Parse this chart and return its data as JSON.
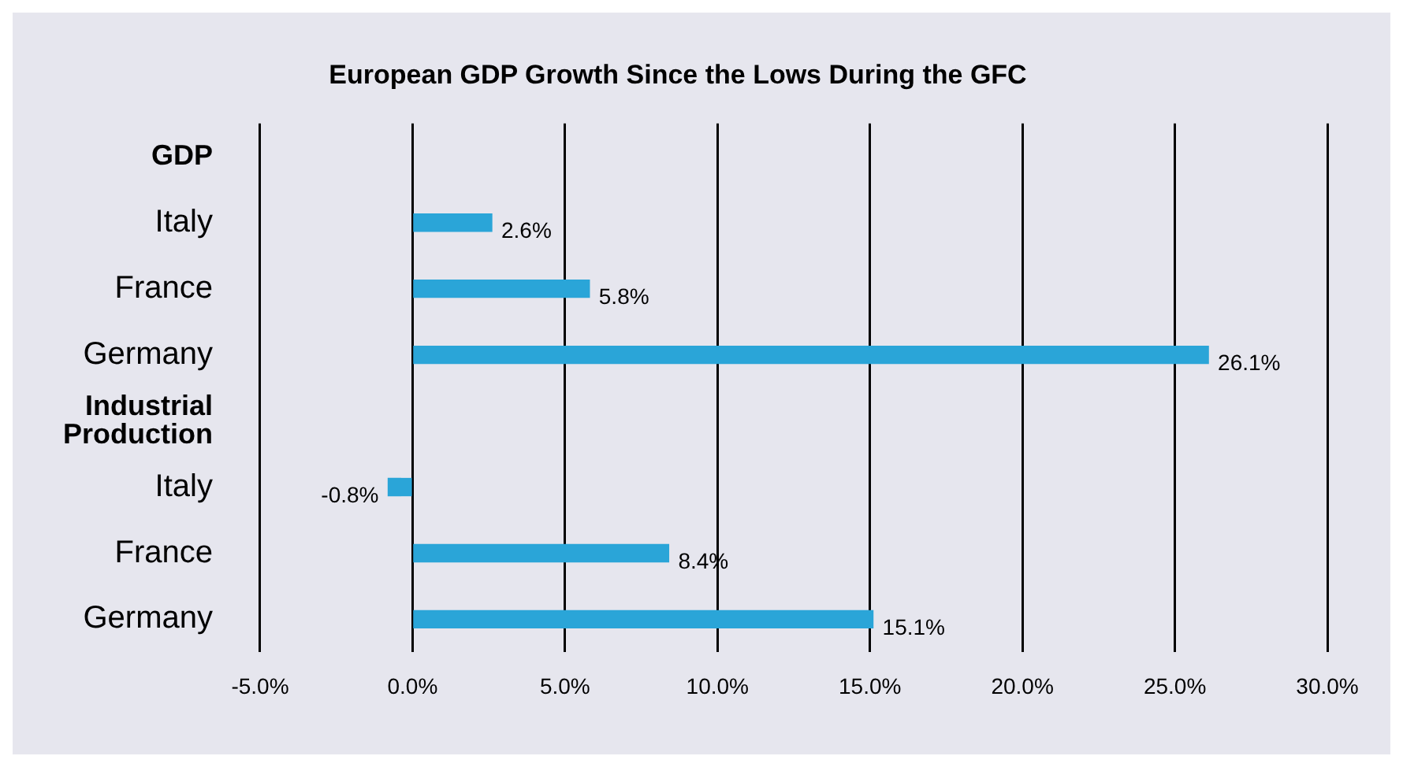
{
  "chart_data": {
    "type": "bar",
    "orientation": "horizontal",
    "title": "European GDP Growth Since the Lows During the GFC",
    "categories": [
      "GDP",
      "Italy",
      "France",
      "Germany",
      "Industrial Production",
      "Italy",
      "France",
      "Germany"
    ],
    "values": [
      null,
      2.6,
      5.8,
      26.1,
      null,
      -0.8,
      8.4,
      15.1
    ],
    "value_labels": [
      null,
      "2.6%",
      "5.8%",
      "26.1%",
      null,
      "-0.8%",
      "8.4%",
      "15.1%"
    ],
    "color": "#2aa5d8",
    "xlim": [
      -5,
      30
    ],
    "xticks": [
      {
        "value": -5,
        "label": "-5.0%"
      },
      {
        "value": 0,
        "label": "0.0%"
      },
      {
        "value": 5,
        "label": "5.0%"
      },
      {
        "value": 10,
        "label": "10.0%"
      },
      {
        "value": 15,
        "label": "15.0%"
      },
      {
        "value": 20,
        "label": "20.0%"
      },
      {
        "value": 25,
        "label": "25.0%"
      },
      {
        "value": 30,
        "label": "30.0%"
      }
    ],
    "grid": "x",
    "legend": false
  }
}
